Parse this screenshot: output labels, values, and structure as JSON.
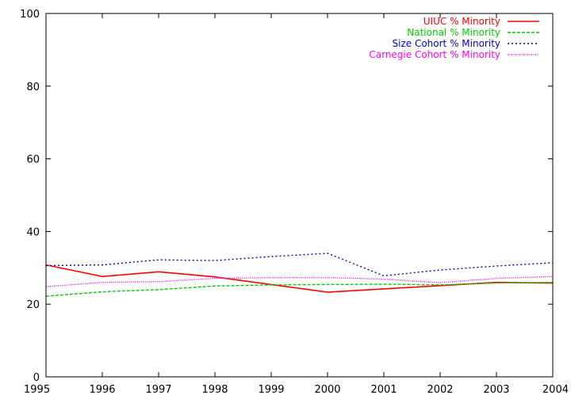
{
  "chart_data": {
    "type": "line",
    "title": "",
    "xlabel": "",
    "ylabel": "",
    "x": [
      1995,
      1996,
      1997,
      1998,
      1999,
      2000,
      2001,
      2002,
      2003,
      2004
    ],
    "xlim": [
      1995,
      2004
    ],
    "ylim": [
      0,
      100
    ],
    "xticks": [
      "1995",
      "1996",
      "1997",
      "1998",
      "1999",
      "2000",
      "2001",
      "2002",
      "2003",
      "2004"
    ],
    "yticks": [
      "0",
      "20",
      "40",
      "60",
      "80",
      "100"
    ],
    "grid": false,
    "legend_position": "top-right",
    "series": [
      {
        "name": "UIUC % Minority",
        "color": "#ff0000",
        "dash": "solid",
        "values": [
          30.8,
          27.6,
          28.9,
          27.5,
          25.4,
          23.3,
          24.2,
          25.1,
          26.0,
          25.8
        ]
      },
      {
        "name": "National % Minority",
        "color": "#00cc00",
        "dash": "dashed",
        "values": [
          22.2,
          23.4,
          24.0,
          25.0,
          25.3,
          25.4,
          25.5,
          25.3,
          25.8,
          26.0
        ]
      },
      {
        "name": "Size Cohort % Minority",
        "color": "#0000cc",
        "dash": "dotted",
        "values": [
          30.6,
          30.8,
          32.2,
          32.0,
          33.1,
          34.0,
          27.8,
          29.4,
          30.5,
          31.4
        ]
      },
      {
        "name": "Carnegie Cohort % Minority",
        "color": "#ff00ff",
        "dash": "fine-dotted",
        "values": [
          24.8,
          26.0,
          26.2,
          27.1,
          27.3,
          27.3,
          26.9,
          25.9,
          27.1,
          27.6
        ]
      }
    ]
  }
}
